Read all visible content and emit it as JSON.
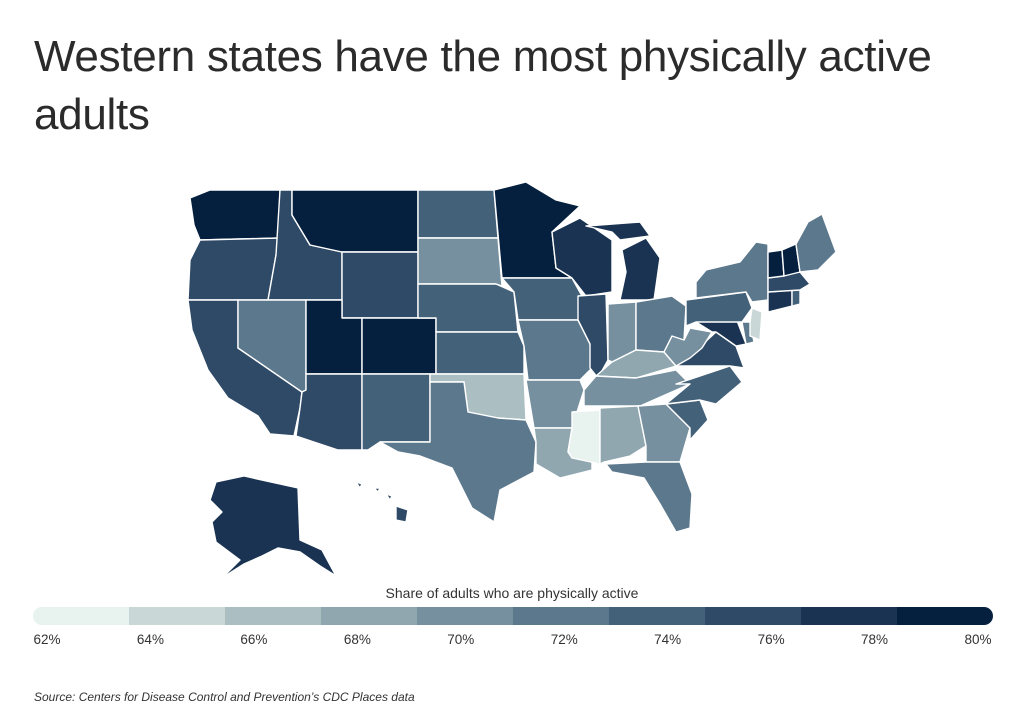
{
  "title": "Western states have the most physically active adults",
  "source": "Source:  Centers for Disease Control and Prevention’s CDC Places data",
  "legend": {
    "title": "Share of adults who are physically active",
    "ticks": [
      "62%",
      "64%",
      "66%",
      "68%",
      "70%",
      "72%",
      "74%",
      "76%",
      "78%",
      "80%"
    ],
    "colors": [
      "#e8f2ee",
      "#c9d8d6",
      "#abbfc2",
      "#90a7b0",
      "#76909f",
      "#5c788d",
      "#44617a",
      "#2e4a66",
      "#1a3352",
      "#05203f"
    ]
  },
  "chart_data": {
    "type": "choropleth",
    "metric": "Share of adults who are physically active",
    "scale": {
      "min": 62,
      "max": 80,
      "step": 2,
      "unit": "%"
    },
    "states": [
      {
        "state": "WA",
        "bin": 9
      },
      {
        "state": "OR",
        "bin": 7
      },
      {
        "state": "CA",
        "bin": 7
      },
      {
        "state": "ID",
        "bin": 7
      },
      {
        "state": "NV",
        "bin": 5
      },
      {
        "state": "MT",
        "bin": 9
      },
      {
        "state": "WY",
        "bin": 7
      },
      {
        "state": "UT",
        "bin": 9
      },
      {
        "state": "CO",
        "bin": 9
      },
      {
        "state": "AZ",
        "bin": 7
      },
      {
        "state": "NM",
        "bin": 6
      },
      {
        "state": "ND",
        "bin": 6
      },
      {
        "state": "SD",
        "bin": 4
      },
      {
        "state": "NE",
        "bin": 6
      },
      {
        "state": "KS",
        "bin": 6
      },
      {
        "state": "OK",
        "bin": 2
      },
      {
        "state": "TX",
        "bin": 5
      },
      {
        "state": "MN",
        "bin": 9
      },
      {
        "state": "IA",
        "bin": 6
      },
      {
        "state": "MO",
        "bin": 5
      },
      {
        "state": "AR",
        "bin": 4
      },
      {
        "state": "LA",
        "bin": 3
      },
      {
        "state": "WI",
        "bin": 8
      },
      {
        "state": "IL",
        "bin": 7
      },
      {
        "state": "MS",
        "bin": 0
      },
      {
        "state": "MI",
        "bin": 8
      },
      {
        "state": "IN",
        "bin": 4
      },
      {
        "state": "KY",
        "bin": 3
      },
      {
        "state": "TN",
        "bin": 4
      },
      {
        "state": "AL",
        "bin": 3
      },
      {
        "state": "OH",
        "bin": 5
      },
      {
        "state": "GA",
        "bin": 4
      },
      {
        "state": "FL",
        "bin": 5
      },
      {
        "state": "SC",
        "bin": 6
      },
      {
        "state": "NC",
        "bin": 6
      },
      {
        "state": "VA",
        "bin": 7
      },
      {
        "state": "WV",
        "bin": 4
      },
      {
        "state": "MD",
        "bin": 8
      },
      {
        "state": "DE",
        "bin": 5
      },
      {
        "state": "PA",
        "bin": 6
      },
      {
        "state": "NY",
        "bin": 5
      },
      {
        "state": "NJ",
        "bin": 1
      },
      {
        "state": "CT",
        "bin": 8
      },
      {
        "state": "RI",
        "bin": 6
      },
      {
        "state": "MA",
        "bin": 7
      },
      {
        "state": "VT",
        "bin": 9
      },
      {
        "state": "NH",
        "bin": 9
      },
      {
        "state": "ME",
        "bin": 5
      },
      {
        "state": "AK",
        "bin": 8
      },
      {
        "state": "HI",
        "bin": 7
      }
    ]
  }
}
